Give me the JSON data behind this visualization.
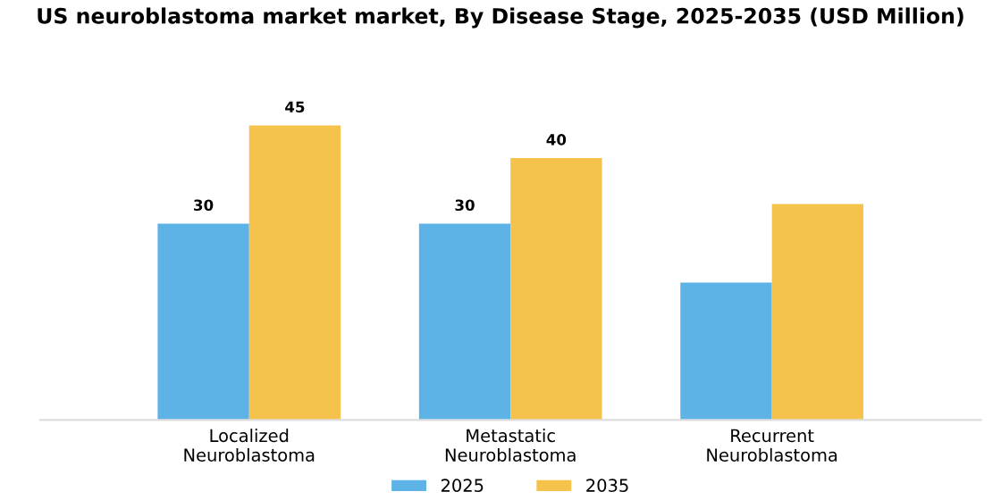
{
  "chart_data": {
    "type": "bar",
    "title": "US neuroblastoma market market, By Disease Stage, 2025-2035 (USD Million)",
    "categories": [
      "Localized\nNeuroblastoma",
      "Metastatic\nNeuroblastoma",
      "Recurrent\nNeuroblastoma"
    ],
    "series": [
      {
        "name": "2025",
        "color": "#5db3e5",
        "values": [
          30,
          30,
          21
        ],
        "value_labels": [
          "30",
          "30",
          null
        ]
      },
      {
        "name": "2035",
        "color": "#f5c24c",
        "values": [
          45,
          40,
          33
        ],
        "value_labels": [
          "45",
          "40",
          null
        ]
      }
    ],
    "legend": "bottom",
    "grid": false
  }
}
